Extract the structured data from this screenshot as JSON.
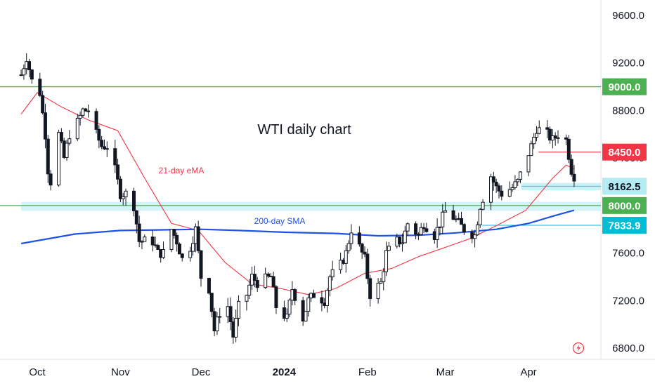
{
  "chart_data": {
    "type": "line",
    "title": "WTI daily chart",
    "y_axis": {
      "range": [
        6700,
        9800
      ],
      "ticks": [
        9600.0,
        9200.0,
        8800.0,
        8400.0,
        8000.0,
        7600.0,
        7200.0,
        6800.0
      ],
      "tick_labels": [
        "9600.0",
        "9200.0",
        "8800.0",
        "8400.0",
        "8000.0",
        "7600.0",
        "7200.0",
        "6800.0"
      ]
    },
    "x_axis": {
      "range": [
        "2023-09-25",
        "2024-05-05"
      ],
      "ticks": [
        {
          "date": "2023-10-01",
          "label": "Oct",
          "bold": false
        },
        {
          "date": "2023-11-01",
          "label": "Nov",
          "bold": false
        },
        {
          "date": "2023-12-01",
          "label": "Dec",
          "bold": false
        },
        {
          "date": "2024-01-01",
          "label": "2024",
          "bold": true
        },
        {
          "date": "2024-02-01",
          "label": "Feb",
          "bold": false
        },
        {
          "date": "2024-03-01",
          "label": "Mar",
          "bold": false
        },
        {
          "date": "2024-04-01",
          "label": "Apr",
          "bold": false
        }
      ]
    },
    "price_path": [
      [
        "2023-09-25",
        9100
      ],
      [
        "2023-09-27",
        9250
      ],
      [
        "2023-09-29",
        9050
      ],
      [
        "2023-10-02",
        8950
      ],
      [
        "2023-10-04",
        8600
      ],
      [
        "2023-10-05",
        8300
      ],
      [
        "2023-10-06",
        8200
      ],
      [
        "2023-10-09",
        8600
      ],
      [
        "2023-10-11",
        8400
      ],
      [
        "2023-10-13",
        8600
      ],
      [
        "2023-10-16",
        8700
      ],
      [
        "2023-10-18",
        8800
      ],
      [
        "2023-10-20",
        8800
      ],
      [
        "2023-10-23",
        8600
      ],
      [
        "2023-10-25",
        8500
      ],
      [
        "2023-10-27",
        8500
      ],
      [
        "2023-10-30",
        8300
      ],
      [
        "2023-11-01",
        8100
      ],
      [
        "2023-11-03",
        8100
      ],
      [
        "2023-11-06",
        8000
      ],
      [
        "2023-11-08",
        7700
      ],
      [
        "2023-11-10",
        7700
      ],
      [
        "2023-11-13",
        7700
      ],
      [
        "2023-11-15",
        7600
      ],
      [
        "2023-11-17",
        7600
      ],
      [
        "2023-11-20",
        7800
      ],
      [
        "2023-11-22",
        7700
      ],
      [
        "2023-11-24",
        7550
      ],
      [
        "2023-11-27",
        7650
      ],
      [
        "2023-11-29",
        7800
      ],
      [
        "2023-12-01",
        7400
      ],
      [
        "2023-12-04",
        7300
      ],
      [
        "2023-12-06",
        6950
      ],
      [
        "2023-12-08",
        7100
      ],
      [
        "2023-12-11",
        7150
      ],
      [
        "2023-12-13",
        6900
      ],
      [
        "2023-12-15",
        7150
      ],
      [
        "2023-12-18",
        7250
      ],
      [
        "2023-12-20",
        7400
      ],
      [
        "2023-12-22",
        7350
      ],
      [
        "2023-12-27",
        7400
      ],
      [
        "2023-12-29",
        7150
      ],
      [
        "2024-01-02",
        7050
      ],
      [
        "2024-01-04",
        7300
      ],
      [
        "2024-01-08",
        7050
      ],
      [
        "2024-01-10",
        7200
      ],
      [
        "2024-01-12",
        7250
      ],
      [
        "2024-01-16",
        7200
      ],
      [
        "2024-01-18",
        7400
      ],
      [
        "2024-01-22",
        7500
      ],
      [
        "2024-01-24",
        7600
      ],
      [
        "2024-01-26",
        7800
      ],
      [
        "2024-01-29",
        7650
      ],
      [
        "2024-01-31",
        7550
      ],
      [
        "2024-02-02",
        7250
      ],
      [
        "2024-02-06",
        7350
      ],
      [
        "2024-02-08",
        7600
      ],
      [
        "2024-02-12",
        7700
      ],
      [
        "2024-02-14",
        7700
      ],
      [
        "2024-02-16",
        7850
      ],
      [
        "2024-02-20",
        7750
      ],
      [
        "2024-02-22",
        7850
      ],
      [
        "2024-02-26",
        7750
      ],
      [
        "2024-02-28",
        7850
      ],
      [
        "2024-03-01",
        7950
      ],
      [
        "2024-03-04",
        7900
      ],
      [
        "2024-03-06",
        7850
      ],
      [
        "2024-03-08",
        7800
      ],
      [
        "2024-03-12",
        7750
      ],
      [
        "2024-03-14",
        8000
      ],
      [
        "2024-03-18",
        8250
      ],
      [
        "2024-03-20",
        8150
      ],
      [
        "2024-03-22",
        8100
      ],
      [
        "2024-03-26",
        8150
      ],
      [
        "2024-03-28",
        8200
      ],
      [
        "2024-04-02",
        8500
      ],
      [
        "2024-04-04",
        8650
      ],
      [
        "2024-04-08",
        8600
      ],
      [
        "2024-04-10",
        8550
      ],
      [
        "2024-04-12",
        8600
      ],
      [
        "2024-04-15",
        8550
      ],
      [
        "2024-04-17",
        8300
      ],
      [
        "2024-04-18",
        8250
      ]
    ],
    "series": [
      {
        "name": "21-day eMA",
        "color": "#f23645",
        "points": [
          [
            "2023-09-25",
            8770
          ],
          [
            "2023-10-01",
            8950
          ],
          [
            "2023-10-10",
            8830
          ],
          [
            "2023-10-20",
            8720
          ],
          [
            "2023-10-31",
            8630
          ],
          [
            "2023-11-10",
            8230
          ],
          [
            "2023-11-20",
            7850
          ],
          [
            "2023-11-30",
            7790
          ],
          [
            "2023-12-10",
            7520
          ],
          [
            "2023-12-20",
            7340
          ],
          [
            "2023-12-31",
            7300
          ],
          [
            "2024-01-10",
            7250
          ],
          [
            "2024-01-20",
            7300
          ],
          [
            "2024-01-31",
            7430
          ],
          [
            "2024-02-10",
            7470
          ],
          [
            "2024-02-20",
            7570
          ],
          [
            "2024-02-29",
            7640
          ],
          [
            "2024-03-10",
            7720
          ],
          [
            "2024-03-20",
            7830
          ],
          [
            "2024-03-31",
            7960
          ],
          [
            "2024-04-10",
            8230
          ],
          [
            "2024-04-15",
            8340
          ],
          [
            "2024-04-18",
            8310
          ]
        ]
      },
      {
        "name": "200-day SMA",
        "color": "#1e53e5",
        "points": [
          [
            "2023-09-25",
            7680
          ],
          [
            "2023-10-15",
            7760
          ],
          [
            "2023-11-01",
            7790
          ],
          [
            "2023-11-15",
            7795
          ],
          [
            "2023-12-01",
            7800
          ],
          [
            "2023-12-15",
            7790
          ],
          [
            "2024-01-01",
            7775
          ],
          [
            "2024-01-20",
            7765
          ],
          [
            "2024-02-05",
            7745
          ],
          [
            "2024-02-20",
            7750
          ],
          [
            "2024-03-05",
            7770
          ],
          [
            "2024-03-20",
            7800
          ],
          [
            "2024-04-01",
            7850
          ],
          [
            "2024-04-10",
            7910
          ],
          [
            "2024-04-18",
            7960
          ]
        ]
      }
    ],
    "horizontal_levels": [
      {
        "value": 9000.0,
        "label": "9000.0",
        "color": "#4caf50",
        "text_color": "#ffffff"
      },
      {
        "value": 8450.0,
        "label": "8450.0",
        "color": "#f23645",
        "text_color": "#ffffff"
      },
      {
        "value": 8162.5,
        "label": "8162.5",
        "color": "#b2ebf2",
        "text_color": "#131722"
      },
      {
        "value": 8000.0,
        "label": "8000.0",
        "color": "#4caf50",
        "text_color": "#ffffff"
      },
      {
        "value": 7833.9,
        "label": "7833.9",
        "color": "#00bcd4",
        "text_color": "#ffffff"
      }
    ],
    "annotations": [
      "21-day eMA",
      "200-day SMA"
    ],
    "colors": {
      "up_candle": "#ffffff",
      "down_candle": "#131722",
      "support_zone": "#b2ebf2"
    },
    "grid": false
  }
}
